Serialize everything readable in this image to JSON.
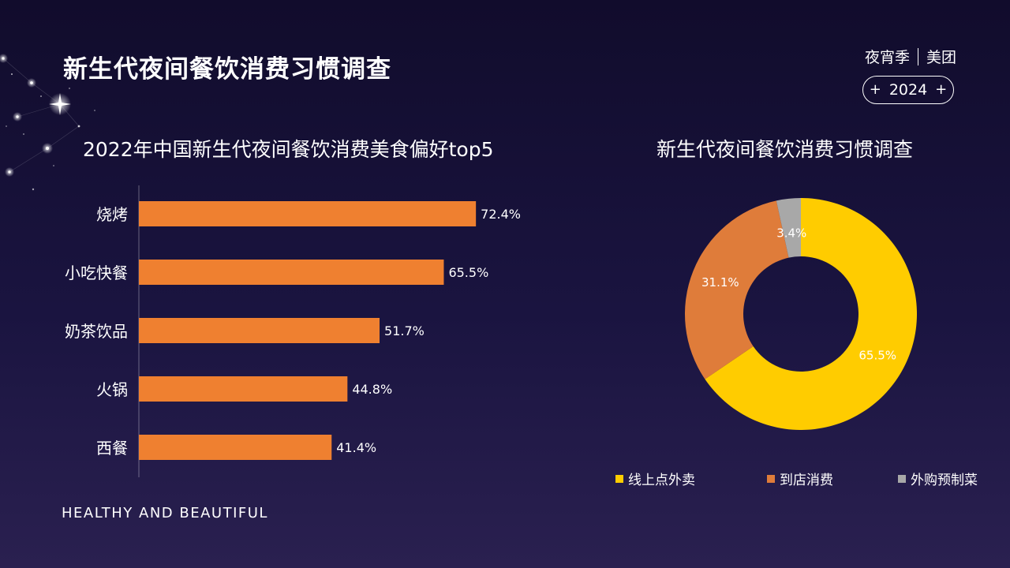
{
  "header": {
    "title": "新生代夜间餐饮消费习惯调查",
    "brand_left": "夜宵季",
    "brand_right": "美团",
    "year": "2024",
    "plus_icon": "+"
  },
  "footer": {
    "tagline": "HEALTHY AND BEAUTIFUL"
  },
  "colors": {
    "bar": "#ef8030",
    "online": "#ffcc00",
    "instore": "#df7c3a",
    "prepared": "#a8a8a8"
  },
  "chart_data": [
    {
      "type": "bar",
      "orientation": "horizontal",
      "title": "2022年中国新生代夜间餐饮消费美食偏好top5",
      "categories": [
        "烧烤",
        "小吃快餐",
        "奶茶饮品",
        "火锅",
        "西餐"
      ],
      "values": [
        72.4,
        65.5,
        51.7,
        44.8,
        41.4
      ],
      "value_labels": [
        "72.4%",
        "65.5%",
        "51.7%",
        "44.8%",
        "41.4%"
      ],
      "unit": "%",
      "xlim": [
        0,
        100
      ]
    },
    {
      "type": "pie",
      "variant": "donut",
      "title": "新生代夜间餐饮消费习惯调查",
      "categories": [
        "线上点外卖",
        "到店消费",
        "外购预制菜"
      ],
      "values": [
        65.5,
        31.1,
        3.4
      ],
      "value_labels": [
        "65.5%",
        "31.1%",
        "3.4%"
      ],
      "legend_position": "bottom"
    }
  ]
}
